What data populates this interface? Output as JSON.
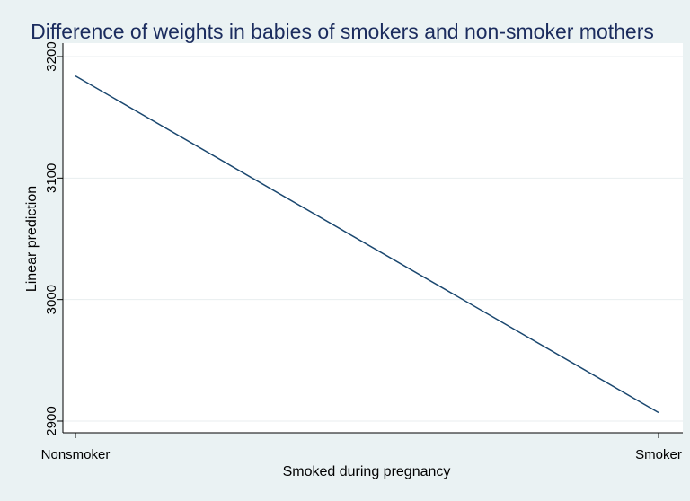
{
  "chart_data": {
    "type": "line",
    "title": "Difference of weights in babies of smokers and non-smoker mothers",
    "xlabel": "Smoked during pregnancy",
    "ylabel": "Linear prediction",
    "categories": [
      "Nonsmoker",
      "Smoker"
    ],
    "series": [
      {
        "values": [
          3184,
          2907
        ],
        "color": "#1a476f"
      }
    ],
    "yticks": [
      "2900",
      "3000",
      "3100",
      "3200"
    ],
    "ylim": [
      2900,
      3200
    ],
    "grid": true,
    "legend": "none",
    "background": "#eaf2f3",
    "plot_background": "#ffffff"
  }
}
